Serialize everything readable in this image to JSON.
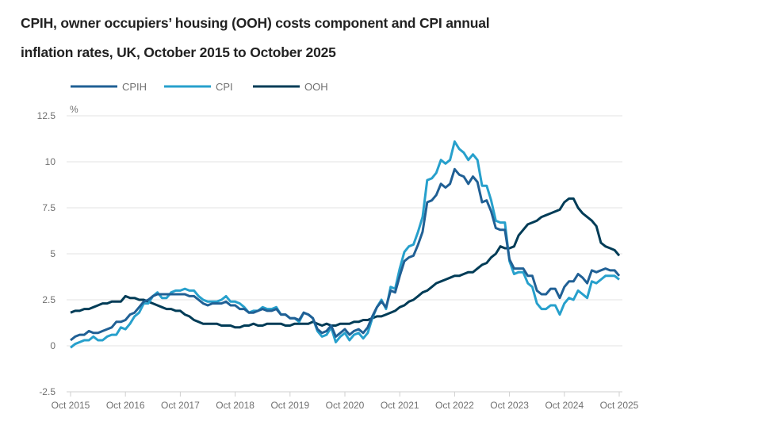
{
  "title_line1": "CPIH, owner occupiers’ housing (OOH) costs component and CPI annual",
  "title_line2": "inflation rates, UK, October 2015 to October 2025",
  "chart_data": {
    "type": "line",
    "title": "CPIH, owner occupiers’ housing (OOH) costs component and CPI annual inflation rates, UK, October 2015 to October 2025",
    "ylabel": "%",
    "ylim": [
      -2.5,
      12.5
    ],
    "yticks": [
      "12.5",
      "10",
      "7.5",
      "5",
      "2.5",
      "0",
      "-2.5"
    ],
    "ytick_values": [
      12.5,
      10,
      7.5,
      5,
      2.5,
      0,
      -2.5
    ],
    "xticks": [
      "Oct 2015",
      "Oct 2016",
      "Oct 2017",
      "Oct 2018",
      "Oct 2019",
      "Oct 2020",
      "Oct 2021",
      "Oct 2022",
      "Oct 2023",
      "Oct 2024",
      "Oct 2025"
    ],
    "x_start": "2015-10",
    "x_end": "2025-10",
    "x_frequency": "monthly",
    "grid": "horizontal",
    "legend_position": "top-left",
    "series": [
      {
        "name": "CPIH",
        "color": "#206095",
        "values": [
          0.3,
          0.5,
          0.6,
          0.6,
          0.8,
          0.7,
          0.7,
          0.8,
          0.9,
          1.0,
          1.3,
          1.3,
          1.4,
          1.7,
          1.8,
          2.1,
          2.4,
          2.5,
          2.7,
          2.8,
          2.8,
          2.8,
          2.8,
          2.8,
          2.8,
          2.8,
          2.7,
          2.7,
          2.5,
          2.3,
          2.2,
          2.3,
          2.3,
          2.3,
          2.4,
          2.2,
          2.2,
          2.0,
          2.0,
          1.8,
          1.8,
          1.9,
          2.0,
          1.9,
          1.9,
          2.0,
          1.7,
          1.7,
          1.5,
          1.5,
          1.4,
          1.8,
          1.7,
          1.5,
          0.9,
          0.7,
          0.8,
          1.1,
          0.5,
          0.7,
          0.9,
          0.6,
          0.8,
          0.9,
          0.7,
          1.0,
          1.6,
          2.1,
          2.4,
          2.1,
          3.0,
          2.9,
          3.8,
          4.6,
          4.8,
          4.9,
          5.5,
          6.2,
          7.8,
          7.9,
          8.2,
          8.8,
          8.6,
          8.8,
          9.6,
          9.3,
          9.2,
          8.8,
          9.2,
          8.9,
          7.8,
          7.9,
          7.3,
          6.4,
          6.3,
          6.3,
          4.7,
          4.2,
          4.2,
          4.2,
          3.8,
          3.8,
          3.0,
          2.8,
          2.8,
          3.1,
          3.1,
          2.6,
          3.2,
          3.5,
          3.5,
          3.9,
          3.7,
          3.4,
          4.1,
          4.0,
          4.1,
          4.2,
          4.1,
          4.1,
          3.8
        ]
      },
      {
        "name": "CPI",
        "color": "#27a0cc",
        "values": [
          -0.1,
          0.1,
          0.2,
          0.3,
          0.3,
          0.5,
          0.3,
          0.3,
          0.5,
          0.6,
          0.6,
          1.0,
          0.9,
          1.2,
          1.6,
          1.8,
          2.3,
          2.3,
          2.7,
          2.9,
          2.6,
          2.6,
          2.9,
          3.0,
          3.0,
          3.1,
          3.0,
          3.0,
          2.7,
          2.5,
          2.4,
          2.4,
          2.4,
          2.5,
          2.7,
          2.4,
          2.4,
          2.3,
          2.1,
          1.8,
          1.9,
          1.9,
          2.1,
          2.0,
          2.0,
          2.1,
          1.7,
          1.7,
          1.5,
          1.5,
          1.3,
          1.8,
          1.7,
          1.5,
          0.8,
          0.5,
          0.6,
          1.0,
          0.2,
          0.5,
          0.7,
          0.3,
          0.6,
          0.7,
          0.4,
          0.7,
          1.5,
          2.1,
          2.5,
          2.0,
          3.2,
          3.1,
          4.2,
          5.1,
          5.4,
          5.5,
          6.2,
          7.0,
          9.0,
          9.1,
          9.4,
          10.1,
          9.9,
          10.1,
          11.1,
          10.7,
          10.5,
          10.1,
          10.4,
          10.1,
          8.7,
          8.7,
          7.9,
          6.8,
          6.7,
          6.7,
          4.6,
          3.9,
          4.0,
          4.0,
          3.4,
          3.2,
          2.3,
          2.0,
          2.0,
          2.2,
          2.2,
          1.7,
          2.3,
          2.6,
          2.5,
          3.0,
          2.8,
          2.6,
          3.5,
          3.4,
          3.6,
          3.8,
          3.8,
          3.8,
          3.6
        ]
      },
      {
        "name": "OOH",
        "color": "#003c57",
        "values": [
          1.8,
          1.9,
          1.9,
          2.0,
          2.0,
          2.1,
          2.2,
          2.3,
          2.3,
          2.4,
          2.4,
          2.4,
          2.7,
          2.6,
          2.6,
          2.5,
          2.5,
          2.4,
          2.3,
          2.2,
          2.1,
          2.0,
          2.0,
          1.9,
          1.9,
          1.7,
          1.6,
          1.4,
          1.3,
          1.2,
          1.2,
          1.2,
          1.2,
          1.1,
          1.1,
          1.1,
          1.0,
          1.0,
          1.1,
          1.1,
          1.2,
          1.1,
          1.1,
          1.2,
          1.2,
          1.2,
          1.2,
          1.1,
          1.1,
          1.2,
          1.2,
          1.2,
          1.2,
          1.3,
          1.2,
          1.1,
          1.2,
          1.1,
          1.1,
          1.2,
          1.2,
          1.2,
          1.3,
          1.3,
          1.4,
          1.4,
          1.5,
          1.6,
          1.6,
          1.7,
          1.8,
          1.9,
          2.1,
          2.2,
          2.4,
          2.5,
          2.7,
          2.9,
          3.0,
          3.2,
          3.4,
          3.5,
          3.6,
          3.7,
          3.8,
          3.8,
          3.9,
          4.0,
          4.0,
          4.2,
          4.4,
          4.5,
          4.8,
          5.0,
          5.4,
          5.3,
          5.3,
          5.4,
          6.0,
          6.3,
          6.6,
          6.7,
          6.8,
          7.0,
          7.1,
          7.2,
          7.3,
          7.4,
          7.8,
          8.0,
          8.0,
          7.5,
          7.2,
          7.0,
          6.8,
          6.5,
          5.6,
          5.4,
          5.3,
          5.2,
          4.9
        ]
      }
    ]
  }
}
